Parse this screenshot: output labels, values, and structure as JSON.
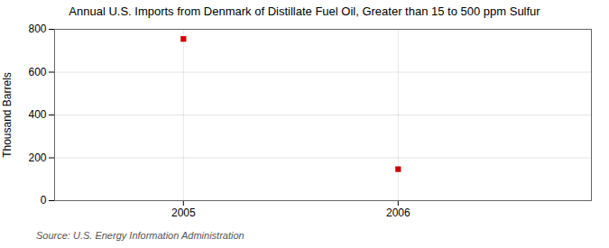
{
  "chart_data": {
    "type": "scatter",
    "title": "Annual U.S. Imports from Denmark of Distillate Fuel Oil, Greater than 15 to 500 ppm Sulfur",
    "ylabel": "Thousand Barrels",
    "annotation": "Source: U.S. Energy Information Administration",
    "x": [
      2005,
      2006
    ],
    "values": [
      755,
      147
    ],
    "color": "#cc0000",
    "marker": "square",
    "xlim": [
      2004.4,
      2006.9
    ],
    "xticks": [
      2005,
      2006
    ],
    "ylim": [
      0,
      800
    ],
    "yticks": [
      0,
      200,
      400,
      600,
      800
    ],
    "grid": true
  }
}
